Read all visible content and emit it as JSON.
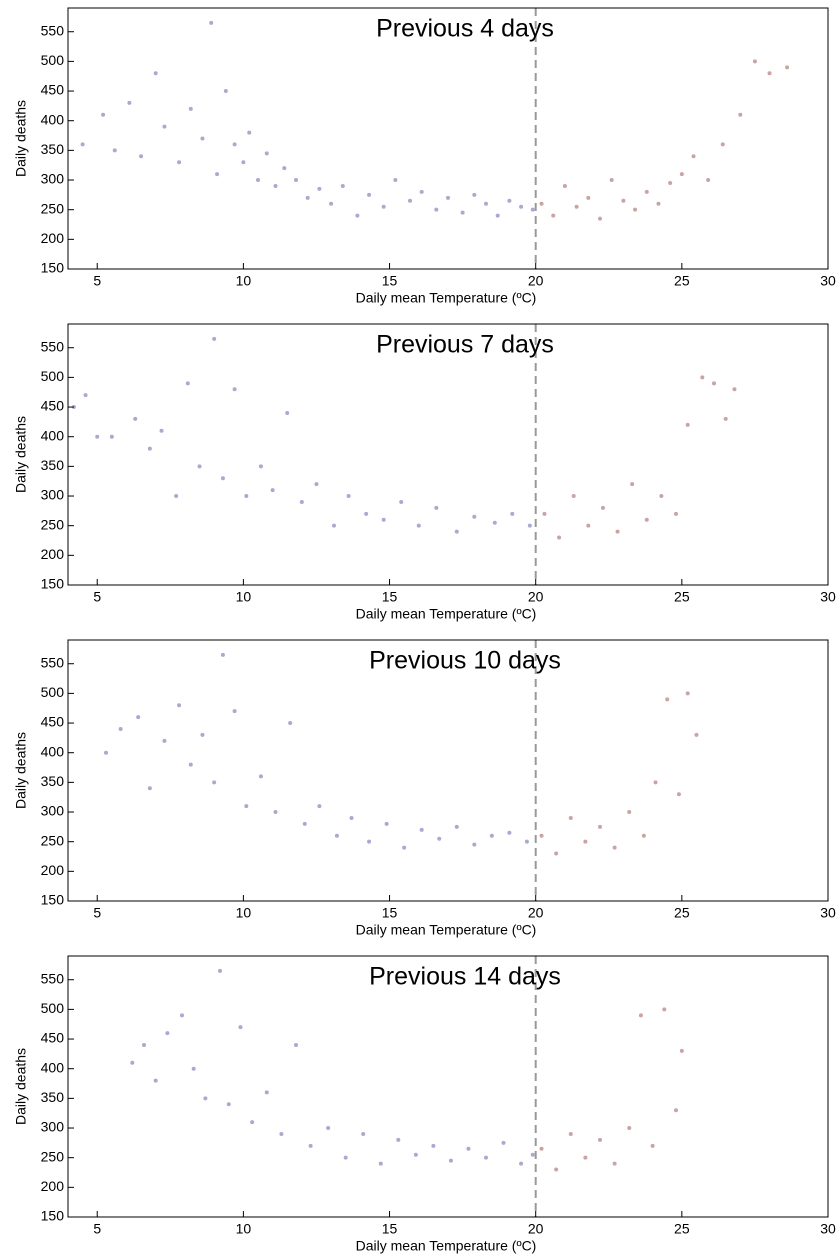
{
  "chart_data": [
    {
      "type": "scatter",
      "title": "Previous 4 days",
      "xlabel": "Daily mean Temperature (ºC)",
      "ylabel": "Daily deaths",
      "xlim": [
        4,
        30
      ],
      "ylim": [
        150,
        590
      ],
      "xticks": [
        5,
        10,
        15,
        20,
        25,
        30
      ],
      "yticks": [
        150,
        200,
        250,
        300,
        350,
        400,
        450,
        500,
        550
      ],
      "vline": 20,
      "series": [
        {
          "color": "#a8aad0",
          "x": [
            4.5,
            5.2,
            5.6,
            6.1,
            6.5,
            7.0,
            7.3,
            7.8,
            8.2,
            8.6,
            8.9,
            9.1,
            9.4,
            9.7,
            10.0,
            10.2,
            10.5,
            10.8,
            11.1,
            11.4,
            11.8,
            12.2,
            12.6,
            13.0,
            13.4,
            13.9,
            14.3,
            14.8,
            15.2,
            15.7,
            16.1,
            16.6,
            17.0,
            17.5,
            17.9,
            18.3,
            18.7,
            19.1,
            19.5,
            19.9
          ],
          "values": [
            360,
            410,
            350,
            430,
            340,
            480,
            390,
            330,
            420,
            370,
            565,
            310,
            450,
            360,
            330,
            380,
            300,
            345,
            290,
            320,
            300,
            270,
            285,
            260,
            290,
            240,
            275,
            255,
            300,
            265,
            280,
            250,
            270,
            245,
            275,
            260,
            240,
            265,
            255,
            250
          ]
        },
        {
          "color": "#caa3a3",
          "x": [
            20.2,
            20.6,
            21.0,
            21.4,
            21.8,
            22.2,
            22.6,
            23.0,
            23.4,
            23.8,
            24.2,
            24.6,
            25.0,
            25.4,
            25.9,
            26.4,
            27.0,
            27.5,
            28.0,
            28.6
          ],
          "values": [
            260,
            240,
            290,
            255,
            270,
            235,
            300,
            265,
            250,
            280,
            260,
            295,
            310,
            340,
            300,
            360,
            410,
            500,
            480,
            490
          ]
        }
      ]
    },
    {
      "type": "scatter",
      "title": "Previous 7 days",
      "xlabel": "Daily mean Temperature (ºC)",
      "ylabel": "Daily deaths",
      "xlim": [
        4,
        30
      ],
      "ylim": [
        150,
        590
      ],
      "xticks": [
        5,
        10,
        15,
        20,
        25,
        30
      ],
      "yticks": [
        150,
        200,
        250,
        300,
        350,
        400,
        450,
        500,
        550
      ],
      "vline": 20,
      "series": [
        {
          "color": "#a8aad0",
          "x": [
            4.2,
            4.6,
            5.0,
            5.5,
            6.3,
            6.8,
            7.2,
            7.7,
            8.1,
            8.5,
            9.0,
            9.3,
            9.7,
            10.1,
            10.6,
            11.0,
            11.5,
            12.0,
            12.5,
            13.1,
            13.6,
            14.2,
            14.8,
            15.4,
            16.0,
            16.6,
            17.3,
            17.9,
            18.6,
            19.2,
            19.8
          ],
          "values": [
            450,
            470,
            400,
            400,
            430,
            380,
            410,
            300,
            490,
            350,
            565,
            330,
            480,
            300,
            350,
            310,
            440,
            290,
            320,
            250,
            300,
            270,
            260,
            290,
            250,
            280,
            240,
            265,
            255,
            270,
            250
          ]
        },
        {
          "color": "#caa3a3",
          "x": [
            20.3,
            20.8,
            21.3,
            21.8,
            22.3,
            22.8,
            23.3,
            23.8,
            24.3,
            24.8,
            25.2,
            25.7,
            26.1,
            26.5,
            26.8
          ],
          "values": [
            270,
            230,
            300,
            250,
            280,
            240,
            320,
            260,
            300,
            270,
            420,
            500,
            490,
            430,
            480
          ]
        }
      ]
    },
    {
      "type": "scatter",
      "title": "Previous 10 days",
      "xlabel": "Daily mean Temperature (ºC)",
      "ylabel": "Daily deaths",
      "xlim": [
        4,
        30
      ],
      "ylim": [
        150,
        590
      ],
      "xticks": [
        5,
        10,
        15,
        20,
        25,
        30
      ],
      "yticks": [
        150,
        200,
        250,
        300,
        350,
        400,
        450,
        500,
        550
      ],
      "vline": 20,
      "series": [
        {
          "color": "#a8aad0",
          "x": [
            5.3,
            5.8,
            6.4,
            6.8,
            7.3,
            7.8,
            8.2,
            8.6,
            9.0,
            9.3,
            9.7,
            10.1,
            10.6,
            11.1,
            11.6,
            12.1,
            12.6,
            13.2,
            13.7,
            14.3,
            14.9,
            15.5,
            16.1,
            16.7,
            17.3,
            17.9,
            18.5,
            19.1,
            19.7
          ],
          "values": [
            400,
            440,
            460,
            340,
            420,
            480,
            380,
            430,
            350,
            565,
            470,
            310,
            360,
            300,
            450,
            280,
            310,
            260,
            290,
            250,
            280,
            240,
            270,
            255,
            275,
            245,
            260,
            265,
            250
          ]
        },
        {
          "color": "#caa3a3",
          "x": [
            20.2,
            20.7,
            21.2,
            21.7,
            22.2,
            22.7,
            23.2,
            23.7,
            24.1,
            24.5,
            24.9,
            25.2,
            25.5
          ],
          "values": [
            260,
            230,
            290,
            250,
            275,
            240,
            300,
            260,
            350,
            490,
            330,
            500,
            430
          ]
        }
      ]
    },
    {
      "type": "scatter",
      "title": "Previous 14 days",
      "xlabel": "Daily mean Temperature (ºC)",
      "ylabel": "Daily deaths",
      "xlim": [
        4,
        30
      ],
      "ylim": [
        150,
        590
      ],
      "xticks": [
        5,
        10,
        15,
        20,
        25,
        30
      ],
      "yticks": [
        150,
        200,
        250,
        300,
        350,
        400,
        450,
        500,
        550
      ],
      "vline": 20,
      "series": [
        {
          "color": "#a8aad0",
          "x": [
            6.2,
            6.6,
            7.0,
            7.4,
            7.9,
            8.3,
            8.7,
            9.2,
            9.5,
            9.9,
            10.3,
            10.8,
            11.3,
            11.8,
            12.3,
            12.9,
            13.5,
            14.1,
            14.7,
            15.3,
            15.9,
            16.5,
            17.1,
            17.7,
            18.3,
            18.9,
            19.5,
            19.9
          ],
          "values": [
            410,
            440,
            380,
            460,
            490,
            400,
            350,
            565,
            340,
            470,
            310,
            360,
            290,
            440,
            270,
            300,
            250,
            290,
            240,
            280,
            255,
            270,
            245,
            265,
            250,
            275,
            240,
            255
          ]
        },
        {
          "color": "#caa3a3",
          "x": [
            20.2,
            20.7,
            21.2,
            21.7,
            22.2,
            22.7,
            23.2,
            23.6,
            24.0,
            24.4,
            24.8,
            25.0
          ],
          "values": [
            265,
            230,
            290,
            250,
            280,
            240,
            300,
            490,
            270,
            500,
            330,
            430
          ]
        }
      ]
    }
  ]
}
